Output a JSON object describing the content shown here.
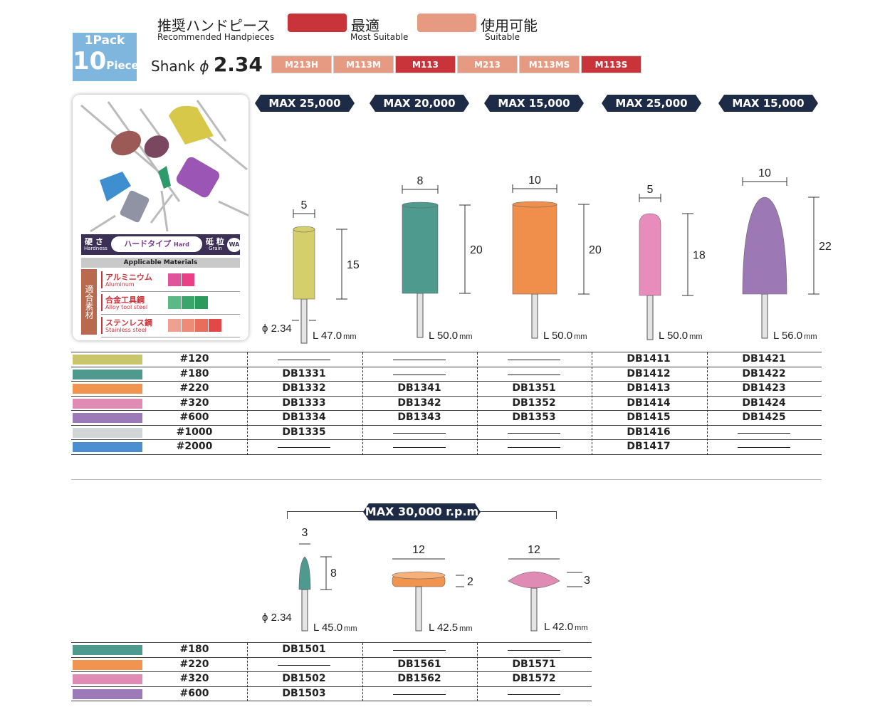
{
  "pack": {
    "line1": "1Pack",
    "count": "10",
    "unit": "Pieces"
  },
  "header": {
    "recommended_jp": "推奨ハンドピース",
    "recommended_en": "Recommended Handpieces",
    "most_jp": "最適",
    "most_en": "Most Suitable",
    "suitable_jp": "使用可能",
    "suitable_en": "Suitable",
    "most_color": "#c9343b",
    "suitable_color": "#e69a82",
    "shank_label": "Shank",
    "shank_phi": "ϕ",
    "shank_value": "2.34"
  },
  "handpieces": [
    {
      "label": "M213H",
      "level": "suitable"
    },
    {
      "label": "M113M",
      "level": "suitable"
    },
    {
      "label": "M113",
      "level": "most"
    },
    {
      "label": "M213",
      "level": "suitable"
    },
    {
      "label": "M113MS",
      "level": "suitable"
    },
    {
      "label": "M113S",
      "level": "most"
    }
  ],
  "legend": {
    "hardness_jp": "硬 さ",
    "hardness_en": "Hardness",
    "type_label": "ハードタイプ",
    "type_en": "Hard",
    "grain_jp": "砥 粒",
    "grain_en": "Grain",
    "grain_value": "WA",
    "applicable": "Applicable Materials",
    "side_label": "適合素材",
    "materials": [
      {
        "jp": "アルミニウム",
        "en": "Aluminum",
        "colors": [
          "#e0559a",
          "#e83f86"
        ]
      },
      {
        "jp": "合金工具鋼",
        "en": "Alloy tool steel",
        "colors": [
          "#5bb887",
          "#3aa66b",
          "#2b9a5c"
        ]
      },
      {
        "jp": "ステンレス鋼",
        "en": "Stainless steel",
        "colors": [
          "#f0a090",
          "#ec8b78",
          "#e76d5c",
          "#e34848"
        ]
      }
    ]
  },
  "section1": {
    "products": [
      {
        "rpm": "MAX 25,000 r.p.m",
        "width": "5",
        "height": "15",
        "shank": "ϕ 2.34",
        "length": "L 47.0",
        "unit": "mm",
        "color": "#d4cf6a"
      },
      {
        "rpm": "MAX 20,000 r.p.m",
        "width": "8",
        "height": "20",
        "length": "L 50.0",
        "unit": "mm",
        "color": "#4f9a8f"
      },
      {
        "rpm": "MAX 15,000 r.p.m",
        "width": "10",
        "height": "20",
        "length": "L 50.0",
        "unit": "mm",
        "color": "#f08f4c"
      },
      {
        "rpm": "MAX 25,000 r.p.m",
        "width": "5",
        "height": "18",
        "length": "L 50.0",
        "unit": "mm",
        "color": "#e78cbb"
      },
      {
        "rpm": "MAX 15,000 r.p.m",
        "width": "10",
        "height": "22",
        "length": "L 56.0",
        "unit": "mm",
        "color": "#9c78b5"
      }
    ],
    "rows": [
      {
        "grit": "#120",
        "color": "#c9c56a",
        "codes": [
          "",
          "",
          "",
          "DB1411",
          "DB1421"
        ]
      },
      {
        "grit": "#180",
        "color": "#4f9a8f",
        "codes": [
          "DB1331",
          "",
          "",
          "DB1412",
          "DB1422"
        ]
      },
      {
        "grit": "#220",
        "color": "#f0944f",
        "codes": [
          "DB1332",
          "DB1341",
          "DB1351",
          "DB1413",
          "DB1423"
        ]
      },
      {
        "grit": "#320",
        "color": "#e08bb4",
        "codes": [
          "DB1333",
          "DB1342",
          "DB1352",
          "DB1414",
          "DB1424"
        ]
      },
      {
        "grit": "#600",
        "color": "#9c7ab8",
        "codes": [
          "DB1334",
          "DB1343",
          "DB1353",
          "DB1415",
          "DB1425"
        ]
      },
      {
        "grit": "#1000",
        "color": "#d3d6d6",
        "codes": [
          "DB1335",
          "",
          "",
          "DB1416",
          ""
        ]
      },
      {
        "grit": "#2000",
        "color": "#4b8fd0",
        "codes": [
          "",
          "",
          "",
          "DB1417",
          ""
        ]
      }
    ]
  },
  "section2": {
    "rpm": "MAX 30,000 r.p.m",
    "products": [
      {
        "width": "3",
        "height": "8",
        "shank": "ϕ 2.34",
        "length": "L 45.0",
        "unit": "mm",
        "color": "#4f9a8f"
      },
      {
        "width": "12",
        "height": "2",
        "length": "L 42.5",
        "unit": "mm",
        "color": "#f0944f"
      },
      {
        "width": "12",
        "height": "3",
        "length": "L 42.0",
        "unit": "mm",
        "color": "#e08bb4"
      }
    ],
    "rows": [
      {
        "grit": "#180",
        "color": "#4f9a8f",
        "codes": [
          "DB1501",
          "",
          ""
        ]
      },
      {
        "grit": "#220",
        "color": "#f0944f",
        "codes": [
          "",
          "DB1561",
          "DB1571"
        ]
      },
      {
        "grit": "#320",
        "color": "#e08bb4",
        "codes": [
          "DB1502",
          "DB1562",
          "DB1572"
        ]
      },
      {
        "grit": "#600",
        "color": "#9c7ab8",
        "codes": [
          "DB1503",
          "",
          ""
        ]
      }
    ]
  }
}
